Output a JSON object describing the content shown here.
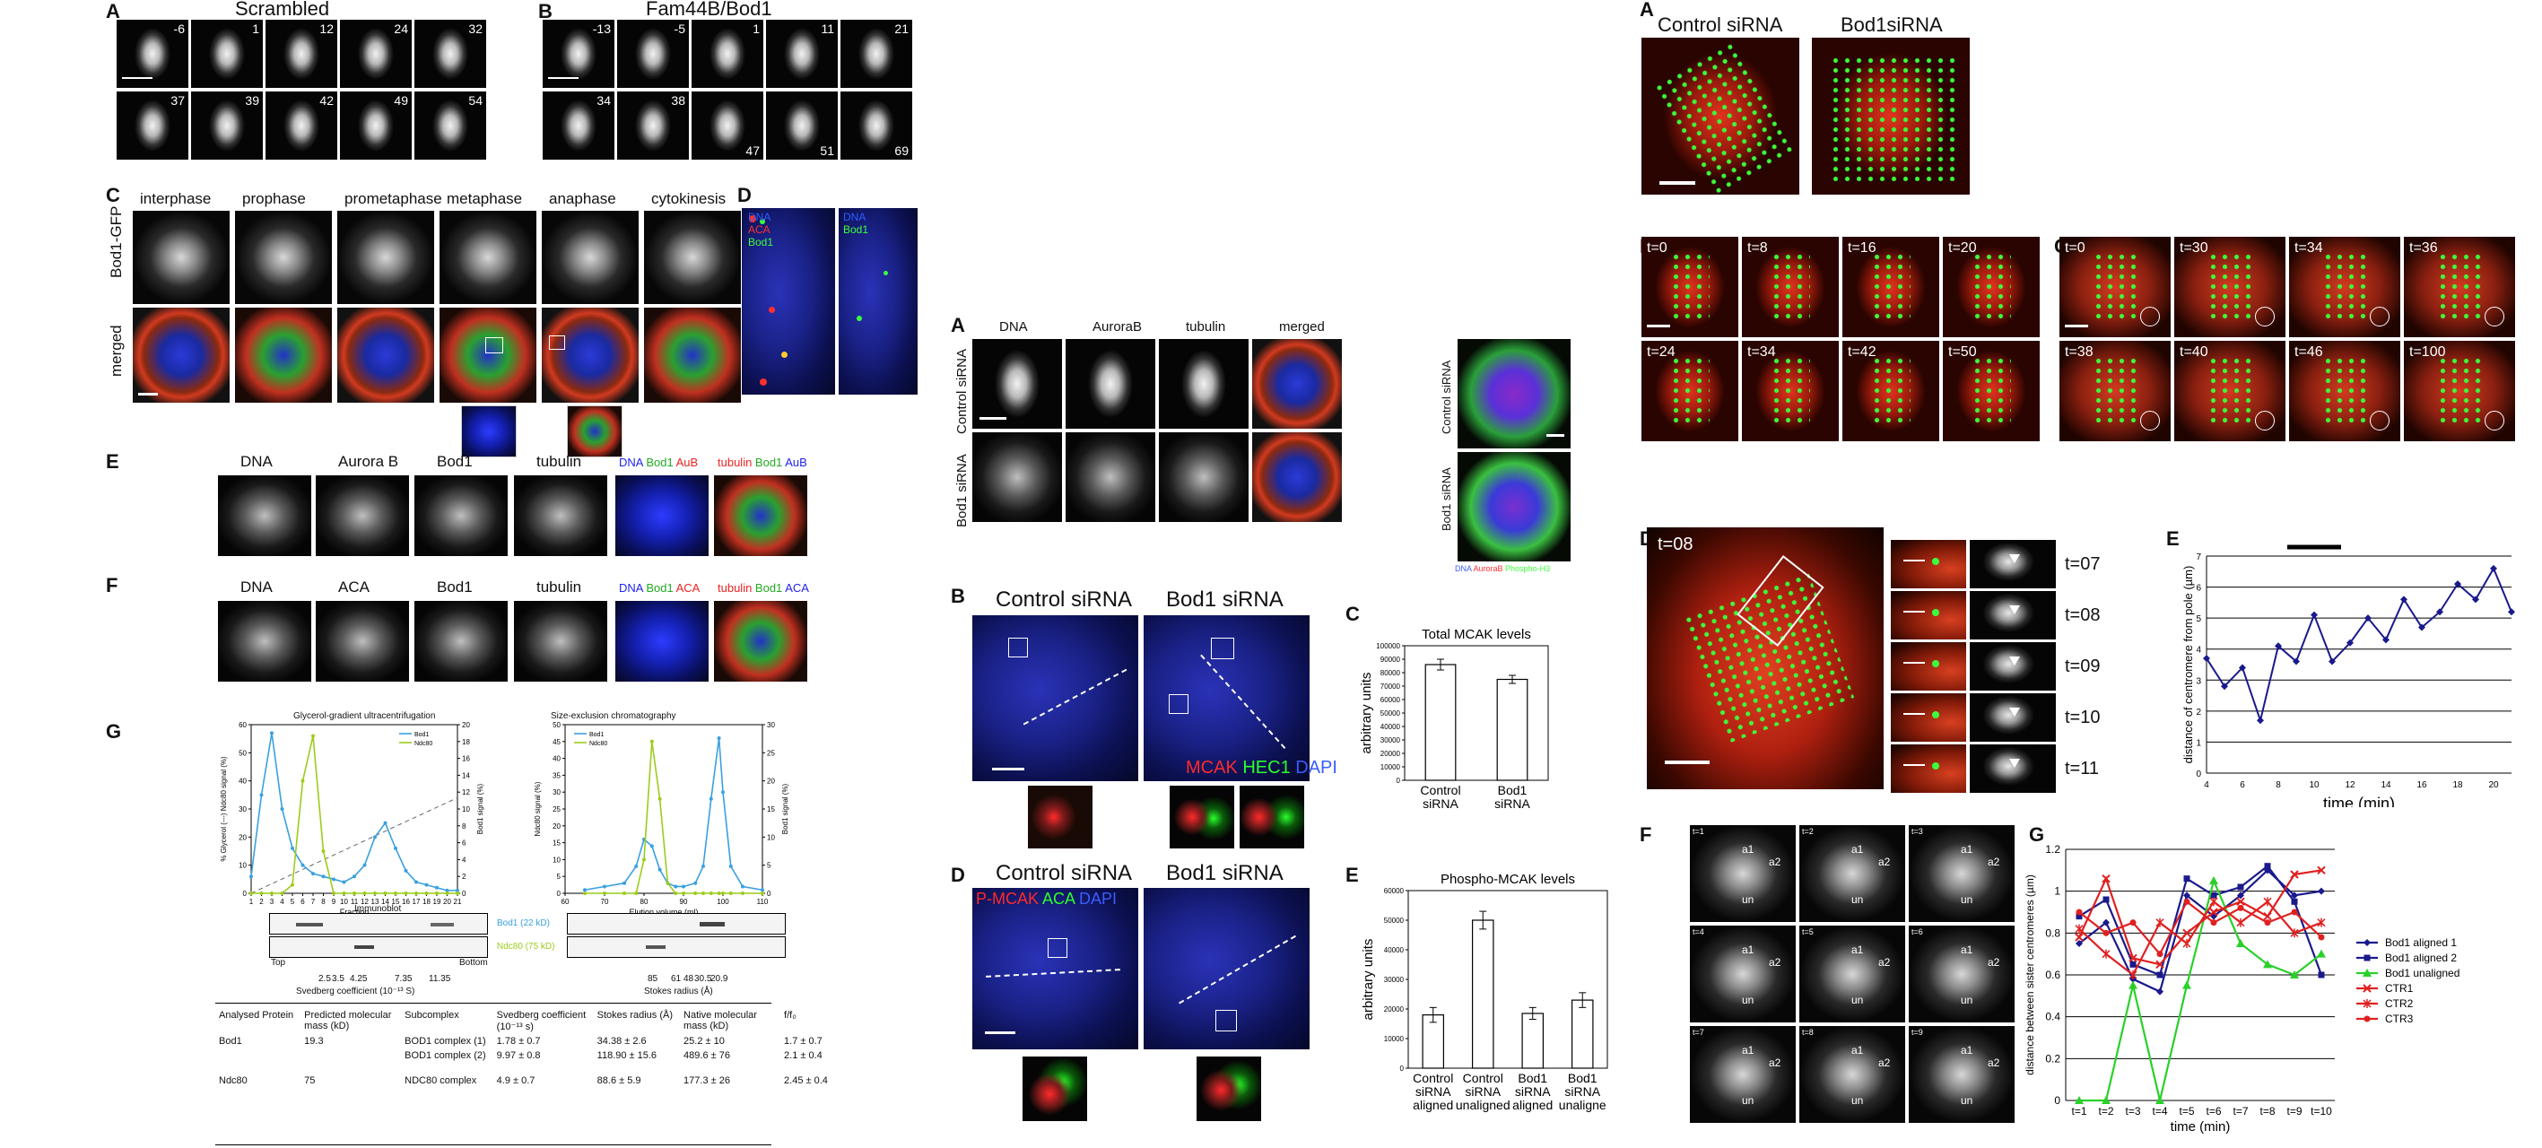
{
  "fig1": {
    "A": {
      "label": "A",
      "title": "Scrambled",
      "times_row1": [
        "-6",
        "1",
        "12",
        "24",
        "32"
      ],
      "times_row2": [
        "37",
        "39",
        "42",
        "49",
        "54"
      ]
    },
    "B": {
      "label": "B",
      "title": "Fam44B/Bod1",
      "times_row1": [
        "-13",
        "-5",
        "1",
        "11",
        "21"
      ],
      "times_row2": [
        "34",
        "38",
        "47",
        "51",
        "69"
      ]
    },
    "C": {
      "label": "C",
      "columns": [
        "interphase",
        "prophase",
        "prometaphase",
        "metaphase",
        "anaphase",
        "cytokinesis"
      ],
      "row_labels": [
        "Bod1-GFP",
        "merged"
      ]
    },
    "D": {
      "label": "D",
      "overlay_left": [
        "DNA",
        "ACA",
        "Bod1"
      ],
      "overlay_right": [
        "DNA",
        "Bod1"
      ],
      "overlay_colors": [
        "#2d5cff",
        "#ff3030",
        "#3cff3c"
      ]
    },
    "E": {
      "label": "E",
      "columns": [
        "DNA",
        "Aurora B",
        "Bod1",
        "tubulin"
      ],
      "merge1": [
        "DNA",
        "Bod1",
        "AuB"
      ],
      "merge1_colors": [
        "#2222ee",
        "#22aa22",
        "#ee2222"
      ],
      "merge2": [
        "tubulin",
        "Bod1",
        "AuB"
      ],
      "merge2_colors": [
        "#ee2222",
        "#22aa22",
        "#2222ee"
      ]
    },
    "F": {
      "label": "F",
      "columns": [
        "DNA",
        "ACA",
        "Bod1",
        "tubulin"
      ],
      "merge1": [
        "DNA",
        "Bod1",
        "ACA"
      ],
      "merge1_colors": [
        "#2222ee",
        "#22aa22",
        "#ee2222"
      ],
      "merge2": [
        "tubulin",
        "Bod1",
        "ACA"
      ],
      "merge2_colors": [
        "#ee2222",
        "#22aa22",
        "#2222ee"
      ]
    },
    "G": {
      "label": "G",
      "left_title": "Glycerol-gradient ultracentrifugation",
      "right_title": "Size-exclusion chromatography",
      "left_xlabel": "Fraction",
      "right_xlabel": "Elution volume (ml)",
      "left_ylabel": "% Glycerol (---) Ndc80 signal (%)",
      "left_ylabel2": "Bod1 signal (%)",
      "right_ylabel": "Ndc80 signal (%)",
      "right_ylabel2": "Bod1 signal (%)",
      "immunoblot": "Immunoblot",
      "blot_bod1": "Bod1 (22 kD)",
      "blot_ndc80": "Ndc80 (75 kD)",
      "top": "Top",
      "bottom": "Bottom",
      "svedberg_marks": [
        "2.5",
        "3.5",
        "4.25",
        "7.35",
        "11.35"
      ],
      "svedberg_label": "Svedberg coefficient (10⁻¹³ S)",
      "stokes_marks": [
        "85",
        "61",
        "48",
        "30.5",
        "20.9"
      ],
      "stokes_label": "Stokes radius (Å)",
      "table": {
        "headers": [
          "Analysed Protein",
          "Predicted molecular mass (kD)",
          "Subcomplex",
          "Svedberg coefficient (10⁻¹³ s)",
          "Stokes radius (Å)",
          "Native molecular mass (kD)",
          "f/f₀"
        ],
        "rows": [
          [
            "Bod1",
            "19.3",
            "BOD1 complex (1)",
            "1.78 ± 0.7",
            "34.38 ± 2.6",
            "25.2 ± 10",
            "1.7 ± 0.7"
          ],
          [
            "",
            "",
            "BOD1 complex (2)",
            "9.97 ± 0.8",
            "118.90 ± 15.6",
            "489.6 ± 76",
            "2.1 ± 0.4"
          ],
          [
            "Ndc80",
            "75",
            "NDC80 complex",
            "4.9 ± 0.7",
            "88.6 ± 5.9",
            "177.3 ± 26",
            "2.45 ± 0.4"
          ]
        ]
      }
    }
  },
  "fig2": {
    "A": {
      "label": "A",
      "columns": [
        "DNA",
        "AuroraB",
        "tubulin",
        "merged"
      ],
      "rows": [
        "Control siRNA",
        "Bod1 siRNA"
      ],
      "side_rows": [
        "Control siRNA",
        "Bod1 siRNA"
      ],
      "side_legend": [
        "DNA",
        "AuroraB",
        "Phospho-H3"
      ],
      "side_legend_colors": [
        "#3a5cff",
        "#ff3030",
        "#3cff3c"
      ]
    },
    "B": {
      "label": "B",
      "titles": [
        "Control siRNA",
        "Bod1 siRNA"
      ],
      "legend": [
        "MCAK",
        "HEC1",
        "DAPI"
      ],
      "legend_colors": [
        "#ff2a2a",
        "#2aff2a",
        "#3a5cff"
      ]
    },
    "C": {
      "label": "C",
      "chart_title": "Total MCAK levels",
      "ylabel": "arbitrary units"
    },
    "D": {
      "label": "D",
      "titles": [
        "Control siRNA",
        "Bod1 siRNA"
      ],
      "legend": [
        "P-MCAK",
        "ACA",
        "DAPI"
      ],
      "legend_colors": [
        "#ff2a2a",
        "#2aff2a",
        "#3a5cff"
      ]
    },
    "E": {
      "label": "E",
      "chart_title": "Phospho-MCAK levels",
      "ylabel": "arbitrary units"
    }
  },
  "fig3": {
    "A": {
      "label": "A",
      "titles": [
        "Control siRNA",
        "Bod1siRNA"
      ]
    },
    "B": {
      "label": "B",
      "times": [
        "t=0",
        "t=8",
        "t=16",
        "t=20",
        "t=24",
        "t=34",
        "t=42",
        "t=50"
      ]
    },
    "C": {
      "label": "C",
      "times": [
        "t=0",
        "t=30",
        "t=34",
        "t=36",
        "t=38",
        "t=40",
        "t=46",
        "t=100"
      ]
    },
    "D": {
      "label": "D",
      "main_time": "t=08",
      "strip_times": [
        "t=07",
        "t=08",
        "t=09",
        "t=10",
        "t=11"
      ]
    },
    "E": {
      "label": "E",
      "xlabel": "time (min)",
      "ylabel": "distance of centromere from pole (µm)"
    },
    "F": {
      "label": "F",
      "times": [
        "t=1",
        "t=2",
        "t=3",
        "t=4",
        "t=5",
        "t=6",
        "t=7",
        "t=8",
        "t=9"
      ],
      "marks": [
        "a1",
        "a2",
        "un"
      ]
    },
    "G": {
      "label": "G",
      "xlabel": "time (min)",
      "ylabel": "distance between sister centromeres (µm)"
    }
  },
  "chart_data": [
    {
      "type": "line",
      "title": "Glycerol-gradient ultracentrifugation",
      "xlabel": "Fraction",
      "x": [
        1,
        2,
        3,
        4,
        5,
        6,
        7,
        8,
        9,
        10,
        11,
        12,
        13,
        14,
        15,
        16,
        17,
        18,
        19,
        20,
        21
      ],
      "series": [
        {
          "name": "Bod1",
          "color": "#3aa0e0",
          "values": [
            6,
            35,
            57,
            30,
            16,
            10,
            7,
            6,
            5,
            4,
            6,
            10,
            20,
            25,
            16,
            8,
            4,
            3,
            2,
            1,
            1
          ]
        },
        {
          "name": "Ndc80",
          "color": "#9ccc1c",
          "values": [
            0,
            0,
            0,
            0,
            3,
            40,
            56,
            15,
            0,
            0,
            0,
            0,
            0,
            0,
            0,
            0,
            0,
            0,
            0,
            0,
            0
          ]
        }
      ],
      "ylim": [
        0,
        60
      ],
      "ylim_right": [
        0,
        20
      ],
      "xlim": [
        1,
        21
      ],
      "legend": "top-right"
    },
    {
      "type": "line",
      "title": "Size-exclusion chromatography",
      "xlabel": "Elution volume (ml)",
      "x": [
        65,
        70,
        75,
        78,
        80,
        82,
        84,
        86,
        88,
        90,
        93,
        95,
        97,
        99,
        100,
        102,
        105,
        110
      ],
      "series": [
        {
          "name": "Bod1",
          "color": "#3aa0e0",
          "values": [
            1,
            2,
            3,
            8,
            16,
            14,
            7,
            3,
            2,
            2,
            3,
            8,
            28,
            46,
            30,
            8,
            2,
            1
          ]
        },
        {
          "name": "Ndc80",
          "color": "#9ccc1c",
          "values": [
            0,
            0,
            0,
            0,
            10,
            45,
            28,
            3,
            0,
            0,
            0,
            0,
            0,
            0,
            0,
            0,
            0,
            0
          ]
        }
      ],
      "ylim": [
        0,
        50
      ],
      "ylim_right": [
        0,
        30
      ],
      "xlim": [
        60,
        110
      ],
      "legend": "top-left"
    },
    {
      "type": "bar",
      "title": "Total MCAK levels",
      "ylabel": "arbitrary units",
      "categories": [
        "Control siRNA",
        "Bod1 siRNA"
      ],
      "values": [
        86000,
        75000
      ],
      "errors": [
        4000,
        3000
      ],
      "ylim": [
        0,
        100000
      ],
      "yticks": [
        "0",
        "10000",
        "20000",
        "30000",
        "40000",
        "50000",
        "60000",
        "70000",
        "80000",
        "90000",
        "100000"
      ]
    },
    {
      "type": "bar",
      "title": "Phospho-MCAK levels",
      "ylabel": "arbitrary units",
      "categories": [
        "Control siRNA aligned",
        "Control siRNA unaligned",
        "Bod1 siRNA aligned",
        "Bod1 siRNA unaligne"
      ],
      "values": [
        18000,
        50000,
        18500,
        23000
      ],
      "errors": [
        2500,
        3000,
        2000,
        2500
      ],
      "ylim": [
        0,
        60000
      ],
      "yticks": [
        "0",
        "10000",
        "20000",
        "30000",
        "40000",
        "50000",
        "60000"
      ]
    },
    {
      "type": "line",
      "xlabel": "time (min)",
      "ylabel": "distance of centromere from pole (µm)",
      "x": [
        4,
        5,
        6,
        7,
        8,
        9,
        10,
        11,
        12,
        13,
        14,
        15,
        16,
        17,
        18,
        19,
        20,
        21
      ],
      "series": [
        {
          "color": "#1a1a8c",
          "values": [
            3.7,
            2.8,
            3.4,
            1.7,
            4.1,
            3.6,
            5.1,
            3.6,
            4.2,
            5.0,
            4.3,
            5.6,
            4.7,
            5.2,
            6.1,
            5.6,
            6.6,
            5.2
          ]
        }
      ],
      "xlim": [
        4,
        21
      ],
      "ylim": [
        0,
        7
      ],
      "grid": true,
      "annotation_bar": [
        8.5,
        11.5
      ]
    },
    {
      "type": "line",
      "xlabel": "time (min)",
      "ylabel": "distance between sister centromeres (µm)",
      "categories": [
        "t=1",
        "t=2",
        "t=3",
        "t=4",
        "t=5",
        "t=6",
        "t=7",
        "t=8",
        "t=9",
        "t=10"
      ],
      "series": [
        {
          "name": "Bod1 aligned 1",
          "color": "#1a1a8c",
          "marker": "diamond",
          "values": [
            0.75,
            0.85,
            0.58,
            0.52,
            0.98,
            0.88,
            0.98,
            1.1,
            0.98,
            1.0
          ]
        },
        {
          "name": "Bod1 aligned 2",
          "color": "#1a1a8c",
          "marker": "square",
          "values": [
            0.88,
            0.96,
            0.65,
            0.6,
            1.06,
            0.98,
            1.02,
            1.12,
            0.95,
            0.6
          ]
        },
        {
          "name": "Bod1 unaligned",
          "color": "#2ad02a",
          "marker": "triangle",
          "values": [
            0.0,
            0.0,
            0.55,
            0.0,
            0.55,
            1.05,
            0.75,
            0.65,
            0.6,
            0.7
          ]
        },
        {
          "name": "CTR1",
          "color": "#e02020",
          "marker": "x",
          "values": [
            0.78,
            1.06,
            0.68,
            0.65,
            0.8,
            0.9,
            0.95,
            0.88,
            1.08,
            1.1
          ]
        },
        {
          "name": "CTR2",
          "color": "#e02020",
          "marker": "asterisk",
          "values": [
            0.82,
            0.7,
            0.6,
            0.85,
            0.75,
            0.95,
            0.85,
            0.95,
            0.8,
            0.85
          ]
        },
        {
          "name": "CTR3",
          "color": "#e02020",
          "marker": "circle",
          "values": [
            0.9,
            0.8,
            0.85,
            0.7,
            0.95,
            0.85,
            0.92,
            0.85,
            0.9,
            0.78
          ]
        }
      ],
      "ylim": [
        0,
        1.2
      ],
      "yticks": [
        "0",
        "0.2",
        "0.4",
        "0.6",
        "0.8",
        "1",
        "1.2"
      ],
      "grid": true,
      "legend": "right"
    }
  ]
}
